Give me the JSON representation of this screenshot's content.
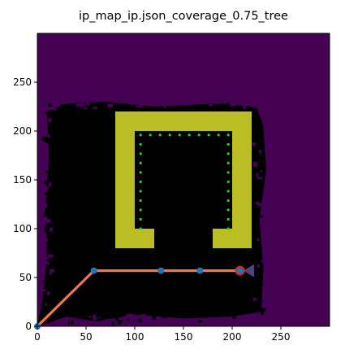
{
  "chart_data": {
    "type": "scatter",
    "title": "ip_map_ip.json_coverage_0.75_tree",
    "xlabel": "",
    "ylabel": "",
    "xlim": [
      0,
      300
    ],
    "ylim": [
      0,
      300
    ],
    "x_ticks": [
      0,
      50,
      100,
      150,
      200,
      250
    ],
    "y_ticks": [
      0,
      50,
      100,
      150,
      200,
      250
    ],
    "colors": {
      "background": "#440154",
      "obstacle": "#bcbd22",
      "coverage": "#000000",
      "path_line": "#f07850",
      "path_nodes": "#1f77b4",
      "goal_dots": "#2ecc40",
      "current_point": "#d62728",
      "heading_marker": "#5b4a8c"
    },
    "obstacle_u": {
      "outer": {
        "x0": 80,
        "x1": 220,
        "y0": 80,
        "y1": 220
      },
      "inner": {
        "x0": 100,
        "x1": 200,
        "y0": 100,
        "y1": 200
      },
      "bottom_gap": {
        "x0": 100,
        "x1": 200,
        "y0": 80,
        "y1": 100
      },
      "bottom_tabs": [
        {
          "x0": 80,
          "x1": 100,
          "y0": 80,
          "y1": 100
        },
        {
          "x0": 180,
          "x1": 220,
          "y0": 80,
          "y1": 100
        },
        {
          "x0": 120,
          "x1": 180,
          "y0": 80,
          "y1": 100
        }
      ]
    },
    "coverage_region": {
      "approx_bounds": {
        "x0": 5,
        "x1": 230,
        "y0": 5,
        "y1": 230
      }
    },
    "path": {
      "x": [
        0,
        58,
        127,
        167,
        208
      ],
      "y": [
        0,
        57,
        57,
        57,
        57
      ]
    },
    "goal_dots": {
      "left": {
        "x": 106,
        "y_start": 100,
        "y_end": 196,
        "step": 9.6
      },
      "right": {
        "x": 196,
        "y_start": 100,
        "y_end": 196,
        "step": 9.6
      },
      "top": {
        "y": 196,
        "x_start": 106,
        "x_end": 196,
        "step": 10
      }
    },
    "current_point": {
      "x": 208,
      "y": 57
    },
    "heading": {
      "x": 215,
      "y": 57,
      "direction": "right"
    }
  }
}
